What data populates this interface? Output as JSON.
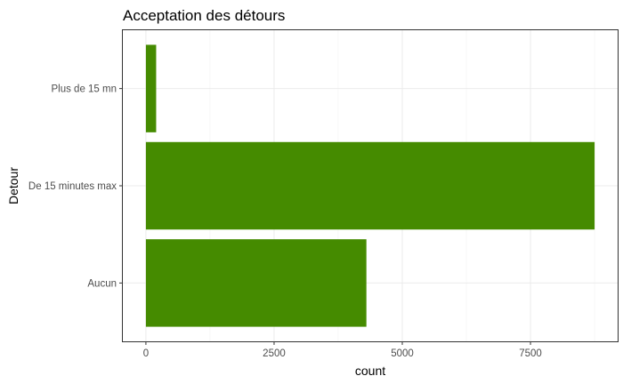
{
  "chart_data": {
    "type": "bar",
    "orientation": "horizontal",
    "title": "Acceptation des détours",
    "xlabel": "count",
    "ylabel": "Detour",
    "categories": [
      "Aucun",
      "De 15 minutes max",
      "Plus de 15 mn"
    ],
    "values": [
      4300,
      8750,
      200
    ],
    "xlim": [
      -450,
      9200
    ],
    "x_ticks": [
      0,
      2500,
      5000,
      7500
    ],
    "x_tick_labels": [
      "0",
      "2500",
      "5000",
      "7500"
    ],
    "grid": true,
    "bar_color": "#458B00",
    "theme": "bw"
  }
}
